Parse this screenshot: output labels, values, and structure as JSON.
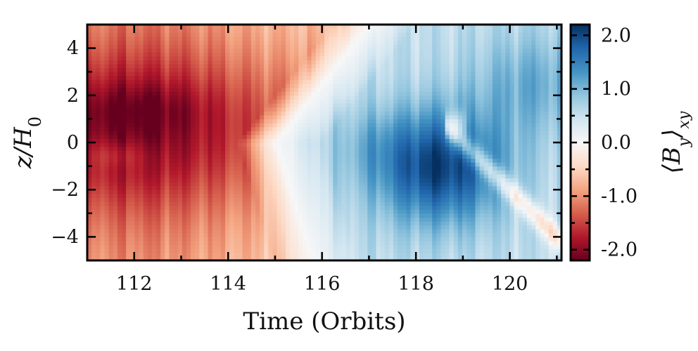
{
  "chart_data": {
    "type": "heatmap",
    "title": "",
    "xlabel": "Time (Orbits)",
    "ylabel": "z/H0",
    "colorbar_label": "⟨By⟩xy",
    "xlim": [
      111,
      121.1
    ],
    "ylim": [
      -5,
      5
    ],
    "x_ticks": [
      112,
      114,
      116,
      118,
      120
    ],
    "x_tick_labels": [
      "112",
      "114",
      "116",
      "118",
      "120"
    ],
    "y_ticks": [
      4,
      2,
      0,
      -2,
      -4
    ],
    "y_tick_labels": [
      "4",
      "2",
      "0",
      "−2",
      "−4"
    ],
    "colorbar": {
      "range": [
        -2.2,
        2.2
      ],
      "ticks": [
        2.0,
        1.0,
        0.0,
        -1.0,
        -2.0
      ],
      "tick_labels": [
        "2.0",
        "1.0",
        "0.0",
        "-1.0",
        "-2.0"
      ],
      "colormap": "RdBu (red negative, blue positive)",
      "colors": [
        "#67001f",
        "#b2182b",
        "#d6604d",
        "#f4a582",
        "#fddbc7",
        "#f7f7f7",
        "#d1e5f0",
        "#92c5de",
        "#4393c3",
        "#2166ac",
        "#053061"
      ]
    },
    "description_of_field": {
      "sign_reversal_time_at_z0": 115.0,
      "sign_reversal_time_at_z_plus5": 117.0,
      "sign_reversal_time_at_z_minus5": 115.8,
      "peak_negative_approx": -2.0,
      "peak_positive_approx": 2.2,
      "peak_positive_time": 118.5,
      "peak_positive_z": -1
    }
  }
}
